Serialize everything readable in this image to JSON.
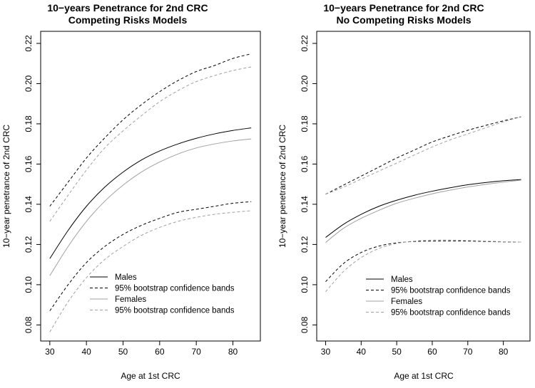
{
  "chart_data": [
    {
      "type": "line",
      "title": "10−years Penetrance for 2nd CRC",
      "subtitle": "Competing Risks Models",
      "xlabel": "Age at 1st CRC",
      "ylabel": "10−year penetrance of 2nd CRC",
      "xlim": [
        27.5,
        87.5
      ],
      "ylim": [
        0.072,
        0.226
      ],
      "x_ticks": [
        30,
        40,
        50,
        60,
        70,
        80
      ],
      "y_ticks": [
        0.08,
        0.1,
        0.12,
        0.14,
        0.16,
        0.18,
        0.2,
        0.22
      ],
      "y_tick_labels": [
        "0.08",
        "0.10",
        "0.12",
        "0.14",
        "0.16",
        "0.18",
        "0.20",
        "0.22"
      ],
      "grid": false,
      "legend_position": "bottom-right",
      "x": [
        30,
        35,
        40,
        45,
        50,
        55,
        60,
        65,
        70,
        75,
        80,
        85
      ],
      "series": [
        {
          "name": "Males",
          "color": "#000000",
          "dash": "solid",
          "values": [
            0.113,
            0.127,
            0.139,
            0.1485,
            0.156,
            0.162,
            0.1665,
            0.17,
            0.1728,
            0.175,
            0.1767,
            0.178
          ]
        },
        {
          "name": "95% bootstrap confidence bands",
          "color": "#000000",
          "dash": "dashed",
          "values": [
            0.139,
            0.151,
            0.163,
            0.173,
            0.182,
            0.1895,
            0.196,
            0.2015,
            0.206,
            0.209,
            0.2125,
            0.2148
          ]
        },
        {
          "name": "",
          "color": "#000000",
          "dash": "dashed",
          "values": [
            0.087,
            0.1,
            0.111,
            0.119,
            0.125,
            0.1295,
            0.133,
            0.136,
            0.1375,
            0.139,
            0.1405,
            0.1413
          ]
        },
        {
          "name": "Females",
          "color": "#a0a0a0",
          "dash": "solid",
          "values": [
            0.1045,
            0.119,
            0.1315,
            0.1415,
            0.1495,
            0.156,
            0.161,
            0.165,
            0.168,
            0.17,
            0.1715,
            0.1725
          ]
        },
        {
          "name": "95% bootstrap confidence bands",
          "color": "#a0a0a0",
          "dash": "dashed",
          "values": [
            0.1315,
            0.1445,
            0.157,
            0.168,
            0.1765,
            0.184,
            0.191,
            0.1965,
            0.201,
            0.204,
            0.2065,
            0.2083
          ]
        },
        {
          "name": "",
          "color": "#a0a0a0",
          "dash": "dashed",
          "values": [
            0.0765,
            0.0915,
            0.1035,
            0.1125,
            0.119,
            0.1245,
            0.1285,
            0.1315,
            0.1335,
            0.135,
            0.136,
            0.1368
          ]
        }
      ]
    },
    {
      "type": "line",
      "title": "10−years Penetrance for 2nd CRC",
      "subtitle": "No Competing Risks Models",
      "xlabel": "Age at 1st CRC",
      "ylabel": "10−year penetrance of 2nd CRC",
      "xlim": [
        27.5,
        87.5
      ],
      "ylim": [
        0.072,
        0.226
      ],
      "x_ticks": [
        30,
        40,
        50,
        60,
        70,
        80
      ],
      "y_ticks": [
        0.08,
        0.1,
        0.12,
        0.14,
        0.16,
        0.18,
        0.2,
        0.22
      ],
      "y_tick_labels": [
        "0.08",
        "0.10",
        "0.12",
        "0.14",
        "0.16",
        "0.18",
        "0.20",
        "0.22"
      ],
      "grid": false,
      "legend_position": "bottom-right",
      "x": [
        30,
        35,
        40,
        45,
        50,
        55,
        60,
        65,
        70,
        75,
        80,
        85
      ],
      "series": [
        {
          "name": "Males",
          "color": "#000000",
          "dash": "solid",
          "values": [
            0.1235,
            0.13,
            0.135,
            0.139,
            0.142,
            0.1445,
            0.1465,
            0.1482,
            0.1497,
            0.1508,
            0.1517,
            0.1523
          ]
        },
        {
          "name": "95% bootstrap confidence bands",
          "color": "#000000",
          "dash": "dashed",
          "values": [
            0.145,
            0.1495,
            0.154,
            0.1585,
            0.163,
            0.167,
            0.171,
            0.174,
            0.1768,
            0.1792,
            0.1815,
            0.1835
          ]
        },
        {
          "name": "",
          "color": "#000000",
          "dash": "dashed",
          "values": [
            0.1015,
            0.1105,
            0.116,
            0.1192,
            0.1208,
            0.1215,
            0.1217,
            0.1218,
            0.1217,
            0.1215,
            0.1213,
            0.1212
          ]
        },
        {
          "name": "Females",
          "color": "#a0a0a0",
          "dash": "solid",
          "values": [
            0.121,
            0.128,
            0.133,
            0.137,
            0.1405,
            0.143,
            0.1452,
            0.147,
            0.1486,
            0.1499,
            0.151,
            0.152
          ]
        },
        {
          "name": "95% bootstrap confidence bands",
          "color": "#a0a0a0",
          "dash": "dashed",
          "values": [
            0.145,
            0.1485,
            0.1525,
            0.1565,
            0.1605,
            0.1645,
            0.1685,
            0.172,
            0.175,
            0.178,
            0.181,
            0.1835
          ]
        },
        {
          "name": "",
          "color": "#a0a0a0",
          "dash": "dashed",
          "values": [
            0.0965,
            0.1065,
            0.1135,
            0.118,
            0.1205,
            0.1217,
            0.1222,
            0.1222,
            0.122,
            0.1217,
            0.1214,
            0.1212
          ]
        }
      ]
    }
  ]
}
